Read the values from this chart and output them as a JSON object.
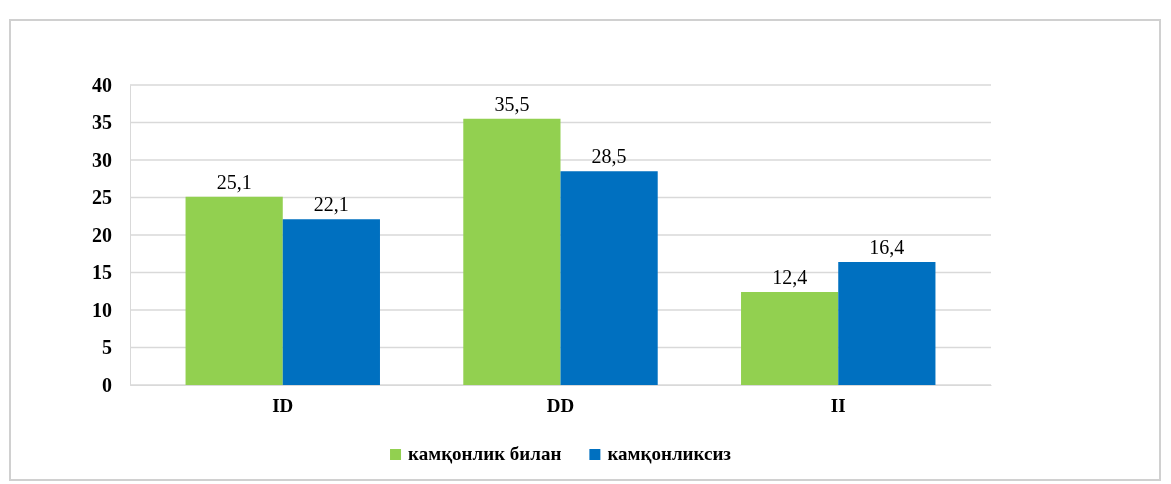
{
  "chart_data": {
    "type": "bar",
    "categories": [
      "ID",
      "DD",
      "II"
    ],
    "series": [
      {
        "name": "камқонлик билан",
        "color": "#92d050",
        "values": [
          25.1,
          35.5,
          12.4
        ],
        "value_labels": [
          "25,1",
          "35,5",
          "12,4"
        ]
      },
      {
        "name": "камқонликсиз",
        "color": "#0070c0",
        "values": [
          22.1,
          28.5,
          16.4
        ],
        "value_labels": [
          "22,1",
          "28,5",
          "16,4"
        ]
      }
    ],
    "ylim": [
      0,
      40
    ],
    "yticks": [
      0,
      5,
      10,
      15,
      20,
      25,
      30,
      35,
      40
    ],
    "grid": "y",
    "legend": "bottom"
  }
}
